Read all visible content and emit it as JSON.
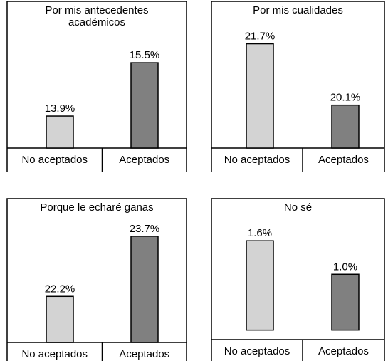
{
  "chart_data": [
    {
      "type": "bar",
      "title": "Por mis antecedentes académicos",
      "categories": [
        "No aceptados",
        "Aceptados"
      ],
      "values": [
        13.9,
        15.5
      ],
      "value_labels": [
        "13.9%",
        "15.5%"
      ],
      "colors": [
        "#d3d3d3",
        "#808080"
      ],
      "ylim": [
        12.94,
        16.1
      ]
    },
    {
      "type": "bar",
      "title": "Por mis cualidades",
      "categories": [
        "No aceptados",
        "Aceptados"
      ],
      "values": [
        21.7,
        20.1
      ],
      "value_labels": [
        "21.7%",
        "20.1%"
      ],
      "colors": [
        "#d3d3d3",
        "#808080"
      ],
      "ylim": [
        18.98,
        22.1
      ]
    },
    {
      "type": "bar",
      "title": "Porque le echaré ganas",
      "categories": [
        "No aceptados",
        "Aceptados"
      ],
      "values": [
        22.2,
        23.7
      ],
      "value_labels": [
        "22.2%",
        "23.7%"
      ],
      "colors": [
        "#d3d3d3",
        "#808080"
      ],
      "ylim": [
        21.05,
        24
      ]
    },
    {
      "type": "bar",
      "title": "No sé",
      "categories": [
        "No aceptados",
        "Aceptados"
      ],
      "values": [
        1.6,
        1.0
      ],
      "value_labels": [
        "1.6%",
        "1.0%"
      ],
      "colors": [
        "#d3d3d3",
        "#808080"
      ],
      "ylim": [
        -0.17,
        1.96
      ]
    }
  ]
}
